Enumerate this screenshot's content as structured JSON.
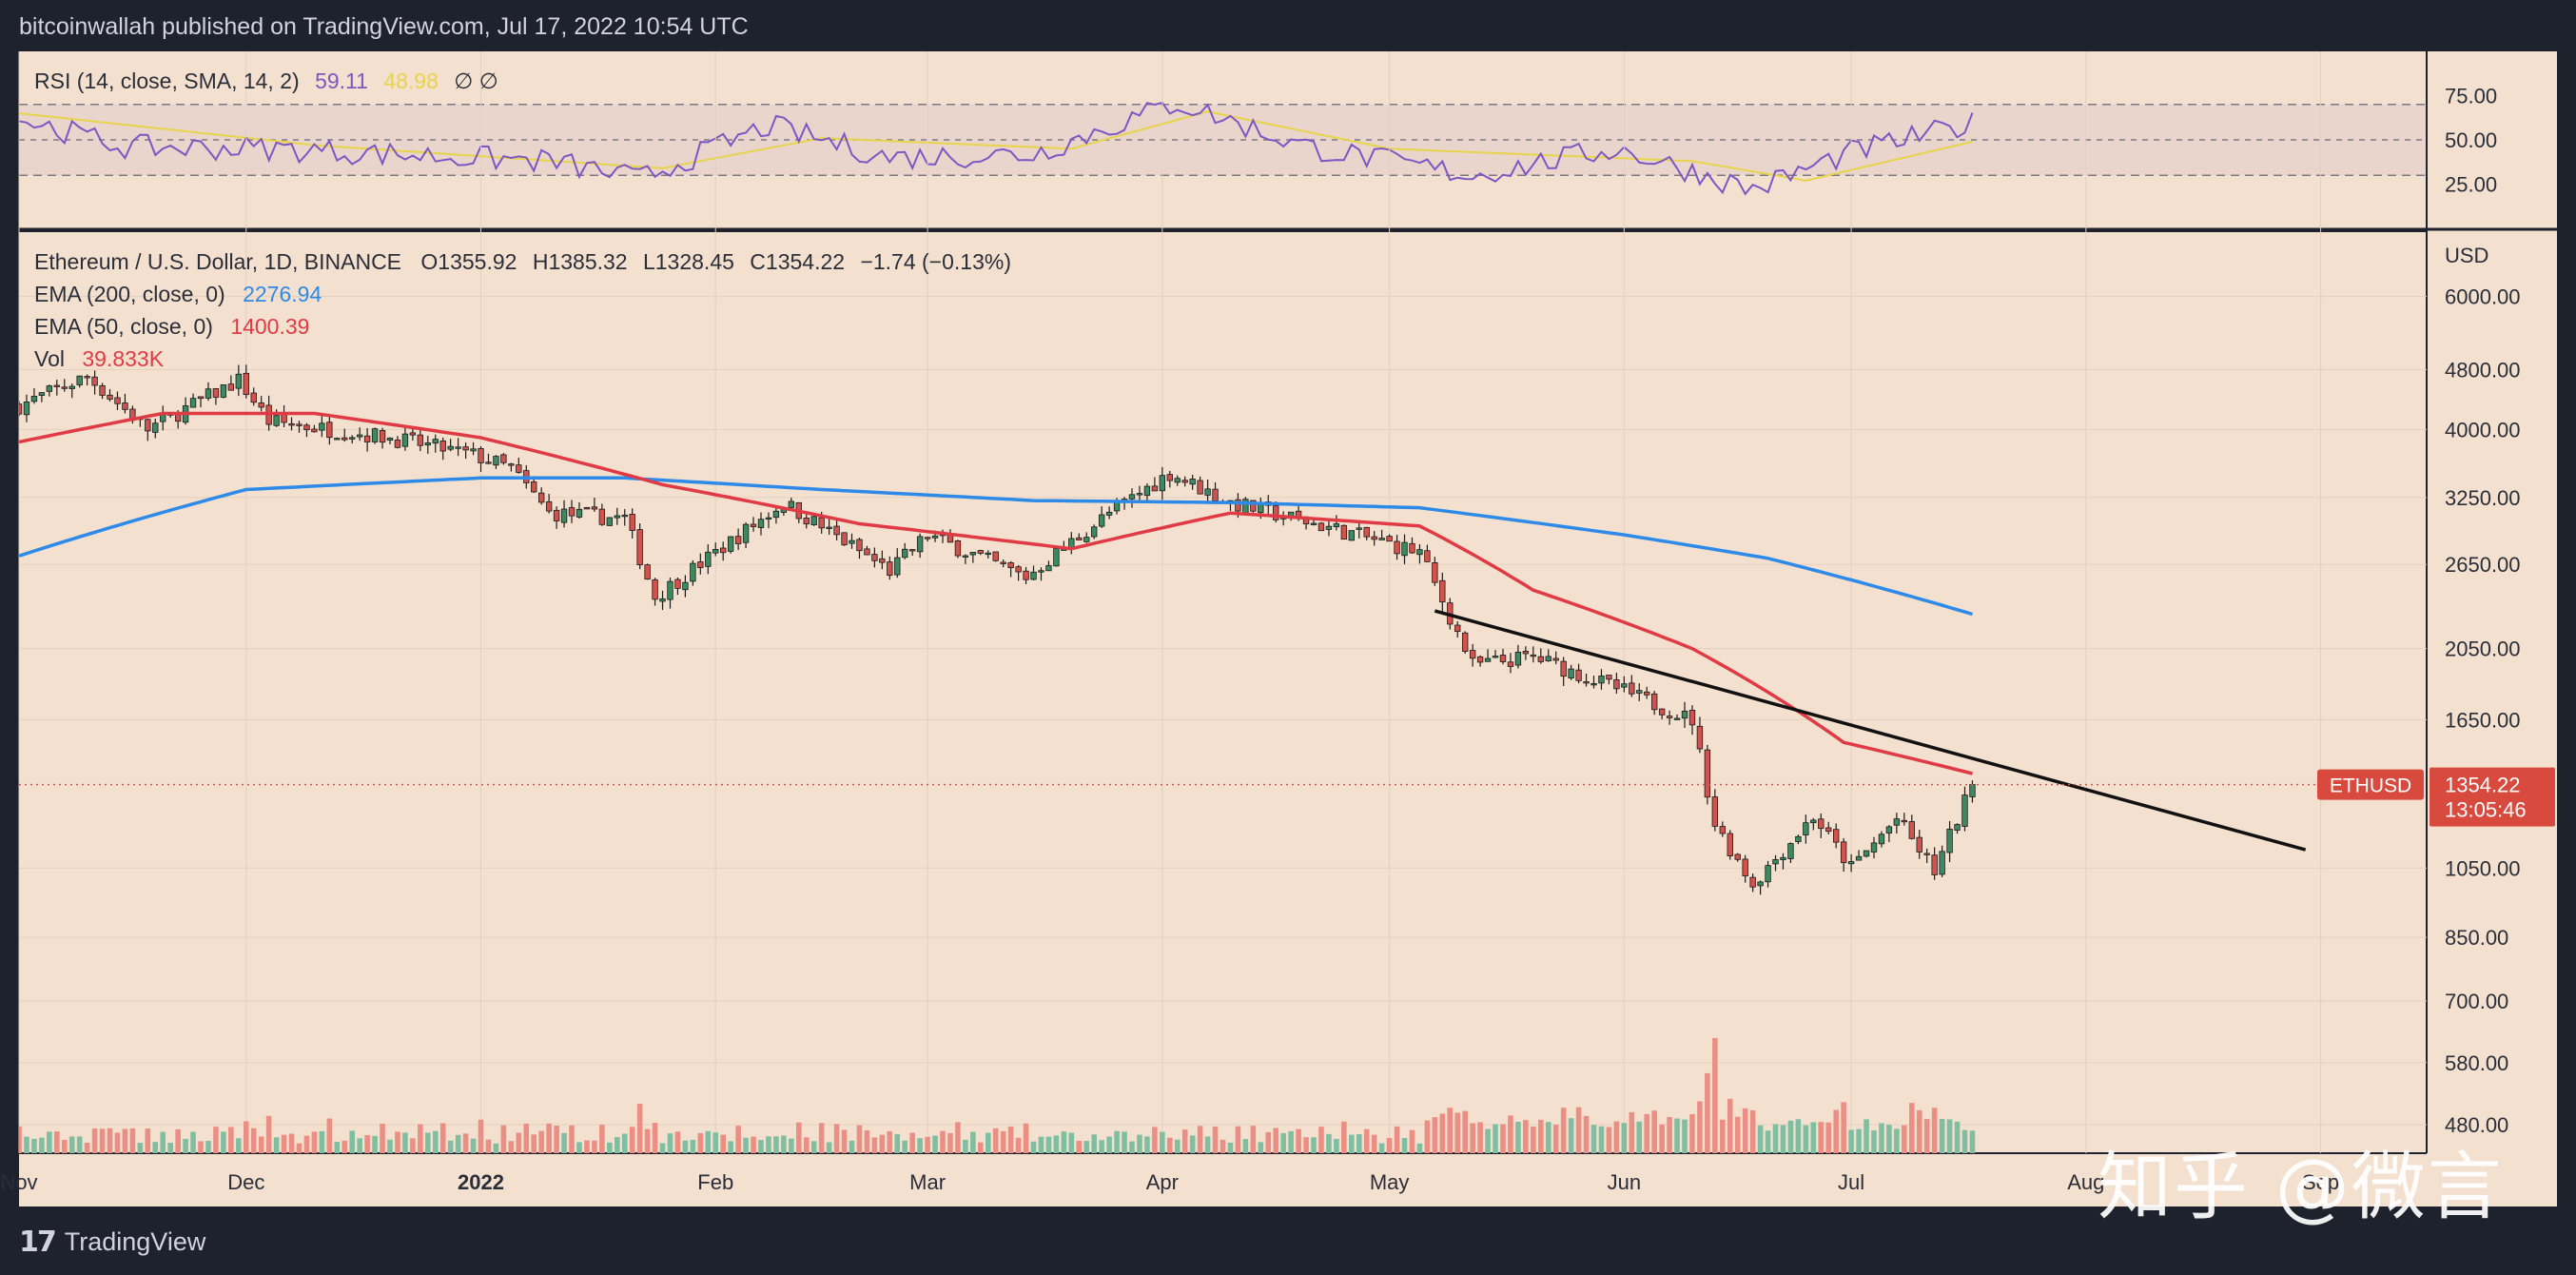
{
  "header": {
    "published": "bitcoinwallah published on TradingView.com, Jul 17, 2022 10:54 UTC"
  },
  "footer": {
    "brand": "TradingView",
    "brand_icon": "tradingview-logo-icon"
  },
  "watermark": "知乎 @微言",
  "colors": {
    "panel_bg": "#f3e0cf",
    "frame": "#1e222d",
    "up": "#3d8a62",
    "down": "#d2524d",
    "ema200": "#2d8ae8",
    "ema50": "#e03a45",
    "rsi": "#7e57c2",
    "rsi_ma": "#e8d44a",
    "trendline": "#111111",
    "vol_up": "#7fbea1",
    "vol_down": "#eb8f84",
    "price_label": "#d84a3e"
  },
  "rsi_panel": {
    "legend": {
      "name": "RSI (14, close, SMA, 14, 2)",
      "value": "59.11",
      "ma_value": "48.98",
      "extra": "∅ ∅"
    },
    "ticks": [
      "75.00",
      "50.00",
      "25.00"
    ]
  },
  "main_panel": {
    "legend": {
      "symbol": "Ethereum / U.S. Dollar, 1D, BINANCE",
      "o": "O1355.92",
      "h": "H1385.32",
      "l": "L1328.45",
      "c": "C1354.22",
      "chg": "−1.74 (−0.13%)",
      "ema200_label": "EMA (200, close, 0)",
      "ema200_value": "2276.94",
      "ema50_label": "EMA (50, close, 0)",
      "ema50_value": "1400.39",
      "vol_label": "Vol",
      "vol_value": "39.833K"
    },
    "currency": "USD",
    "price_ticks": [
      "6000.00",
      "4800.00",
      "4000.00",
      "3250.00",
      "2650.00",
      "2050.00",
      "1650.00",
      "1050.00",
      "850.00",
      "700.00",
      "580.00",
      "480.00"
    ],
    "last_price": {
      "symbol": "ETHUSD",
      "price": "1354.22",
      "countdown": "13:05:46"
    }
  },
  "x_axis": {
    "labels": [
      "Nov",
      "Dec",
      "2022",
      "Feb",
      "Mar",
      "Apr",
      "May",
      "Jun",
      "Jul",
      "Aug",
      "Sep"
    ]
  },
  "chart_data": {
    "type": "candlestick",
    "title": "Ethereum / U.S. Dollar, 1D, BINANCE",
    "y_scale": "log",
    "ylim": [
      440,
      7300
    ],
    "x_range": [
      "2021-11-01",
      "2022-09-15"
    ],
    "ohlc_keyframes": [
      {
        "date": "2021-11-01",
        "close": 4300
      },
      {
        "date": "2021-11-10",
        "close": 4700
      },
      {
        "date": "2021-11-18",
        "close": 4000
      },
      {
        "date": "2021-11-30",
        "close": 4650
      },
      {
        "date": "2021-12-04",
        "close": 4100
      },
      {
        "date": "2021-12-20",
        "close": 3900
      },
      {
        "date": "2021-12-31",
        "close": 3700
      },
      {
        "date": "2022-01-05",
        "close": 3550
      },
      {
        "date": "2022-01-10",
        "close": 3100
      },
      {
        "date": "2022-01-20",
        "close": 3050
      },
      {
        "date": "2022-01-24",
        "close": 2400
      },
      {
        "date": "2022-02-10",
        "close": 3200
      },
      {
        "date": "2022-02-24",
        "close": 2600
      },
      {
        "date": "2022-03-01",
        "close": 2900
      },
      {
        "date": "2022-03-14",
        "close": 2550
      },
      {
        "date": "2022-03-25",
        "close": 3100
      },
      {
        "date": "2022-04-02",
        "close": 3500
      },
      {
        "date": "2022-04-10",
        "close": 3200
      },
      {
        "date": "2022-04-24",
        "close": 2950
      },
      {
        "date": "2022-05-05",
        "close": 2750
      },
      {
        "date": "2022-05-12",
        "close": 1950
      },
      {
        "date": "2022-05-20",
        "close": 2000
      },
      {
        "date": "2022-06-01",
        "close": 1800
      },
      {
        "date": "2022-06-10",
        "close": 1650
      },
      {
        "date": "2022-06-13",
        "close": 1200
      },
      {
        "date": "2022-06-18",
        "close": 1000
      },
      {
        "date": "2022-06-26",
        "close": 1230
      },
      {
        "date": "2022-07-01",
        "close": 1050
      },
      {
        "date": "2022-07-07",
        "close": 1220
      },
      {
        "date": "2022-07-12",
        "close": 1040
      },
      {
        "date": "2022-07-17",
        "close": 1354.22
      }
    ],
    "series": [
      {
        "name": "EMA (200, close, 0)",
        "last": 2276.94,
        "points": [
          {
            "date": "2021-11-01",
            "value": 2720
          },
          {
            "date": "2021-12-01",
            "value": 3330
          },
          {
            "date": "2022-01-01",
            "value": 3450
          },
          {
            "date": "2022-01-20",
            "value": 3450
          },
          {
            "date": "2022-02-15",
            "value": 3330
          },
          {
            "date": "2022-03-15",
            "value": 3220
          },
          {
            "date": "2022-04-10",
            "value": 3200
          },
          {
            "date": "2022-05-05",
            "value": 3150
          },
          {
            "date": "2022-06-01",
            "value": 2900
          },
          {
            "date": "2022-06-20",
            "value": 2700
          },
          {
            "date": "2022-07-17",
            "value": 2276.94
          }
        ]
      },
      {
        "name": "EMA (50, close, 0)",
        "last": 1400.39,
        "points": [
          {
            "date": "2021-11-01",
            "value": 3850
          },
          {
            "date": "2021-11-20",
            "value": 4200
          },
          {
            "date": "2021-12-10",
            "value": 4200
          },
          {
            "date": "2022-01-01",
            "value": 3900
          },
          {
            "date": "2022-01-25",
            "value": 3380
          },
          {
            "date": "2022-02-20",
            "value": 3000
          },
          {
            "date": "2022-03-20",
            "value": 2780
          },
          {
            "date": "2022-04-10",
            "value": 3100
          },
          {
            "date": "2022-05-05",
            "value": 2980
          },
          {
            "date": "2022-05-20",
            "value": 2450
          },
          {
            "date": "2022-06-10",
            "value": 2050
          },
          {
            "date": "2022-06-30",
            "value": 1540
          },
          {
            "date": "2022-07-17",
            "value": 1400.39
          }
        ]
      },
      {
        "name": "RSI (14, close, SMA, 14, 2)",
        "last": 59.11,
        "points": [
          {
            "date": "2021-11-01",
            "value": 62
          },
          {
            "date": "2021-11-15",
            "value": 46
          },
          {
            "date": "2021-12-05",
            "value": 45
          },
          {
            "date": "2022-01-10",
            "value": 38
          },
          {
            "date": "2022-01-22",
            "value": 28
          },
          {
            "date": "2022-02-08",
            "value": 58
          },
          {
            "date": "2022-02-24",
            "value": 40
          },
          {
            "date": "2022-03-15",
            "value": 42
          },
          {
            "date": "2022-04-03",
            "value": 71
          },
          {
            "date": "2022-04-20",
            "value": 46
          },
          {
            "date": "2022-05-12",
            "value": 30
          },
          {
            "date": "2022-05-31",
            "value": 45
          },
          {
            "date": "2022-06-18",
            "value": 22
          },
          {
            "date": "2022-07-01",
            "value": 43
          },
          {
            "date": "2022-07-08",
            "value": 50
          },
          {
            "date": "2022-07-17",
            "value": 59.11
          }
        ]
      },
      {
        "name": "RSI SMA",
        "last": 48.98,
        "points": [
          {
            "date": "2021-11-01",
            "value": 65
          },
          {
            "date": "2021-12-10",
            "value": 47
          },
          {
            "date": "2022-01-25",
            "value": 34
          },
          {
            "date": "2022-02-15",
            "value": 51
          },
          {
            "date": "2022-03-20",
            "value": 45
          },
          {
            "date": "2022-04-07",
            "value": 66
          },
          {
            "date": "2022-05-01",
            "value": 45
          },
          {
            "date": "2022-06-10",
            "value": 38
          },
          {
            "date": "2022-06-25",
            "value": 27
          },
          {
            "date": "2022-07-17",
            "value": 48.98
          }
        ]
      }
    ],
    "trendline": [
      {
        "date": "2022-05-07",
        "value": 2300
      },
      {
        "date": "2022-08-30",
        "value": 1110
      }
    ],
    "volume_last": "39.833K",
    "rsi_levels": [
      70,
      50,
      30
    ]
  }
}
